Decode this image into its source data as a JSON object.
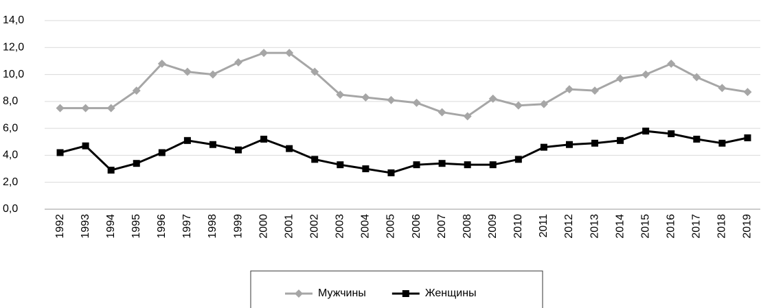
{
  "chart_data": {
    "type": "line",
    "categories": [
      "1992",
      "1993",
      "1994",
      "1995",
      "1996",
      "1997",
      "1998",
      "1999",
      "2000",
      "2001",
      "2002",
      "2003",
      "2004",
      "2005",
      "2006",
      "2007",
      "2008",
      "2009",
      "2010",
      "2011",
      "2012",
      "2013",
      "2014",
      "2015",
      "2016",
      "2017",
      "2018",
      "2019"
    ],
    "series": [
      {
        "name": "Мужчины",
        "color": "#a6a6a6",
        "marker": "diamond",
        "values": [
          7.5,
          7.5,
          7.5,
          8.8,
          10.8,
          10.2,
          10.0,
          10.9,
          11.6,
          11.6,
          10.2,
          8.5,
          8.3,
          8.1,
          7.9,
          7.2,
          6.9,
          8.2,
          7.7,
          7.8,
          8.9,
          8.8,
          9.7,
          10.0,
          10.8,
          9.8,
          9.0,
          8.7
        ]
      },
      {
        "name": "Женщины",
        "color": "#000000",
        "marker": "square",
        "values": [
          4.2,
          4.7,
          2.9,
          3.4,
          4.2,
          5.1,
          4.8,
          4.4,
          5.2,
          4.5,
          3.7,
          3.3,
          3.0,
          2.7,
          3.3,
          3.4,
          3.3,
          3.3,
          3.7,
          4.6,
          4.8,
          4.9,
          5.1,
          5.8,
          5.6,
          5.2,
          4.9,
          5.3
        ]
      }
    ],
    "ylim": [
      0,
      14
    ],
    "yticks": [
      {
        "value": 0,
        "label": "0,0"
      },
      {
        "value": 2,
        "label": "2,0"
      },
      {
        "value": 4,
        "label": "4,0"
      },
      {
        "value": 6,
        "label": "6,0"
      },
      {
        "value": 8,
        "label": "8,0"
      },
      {
        "value": 10,
        "label": "10,0"
      },
      {
        "value": 12,
        "label": "12,0"
      },
      {
        "value": 14,
        "label": "14,0"
      }
    ],
    "grid": true,
    "legend": "bottom"
  }
}
